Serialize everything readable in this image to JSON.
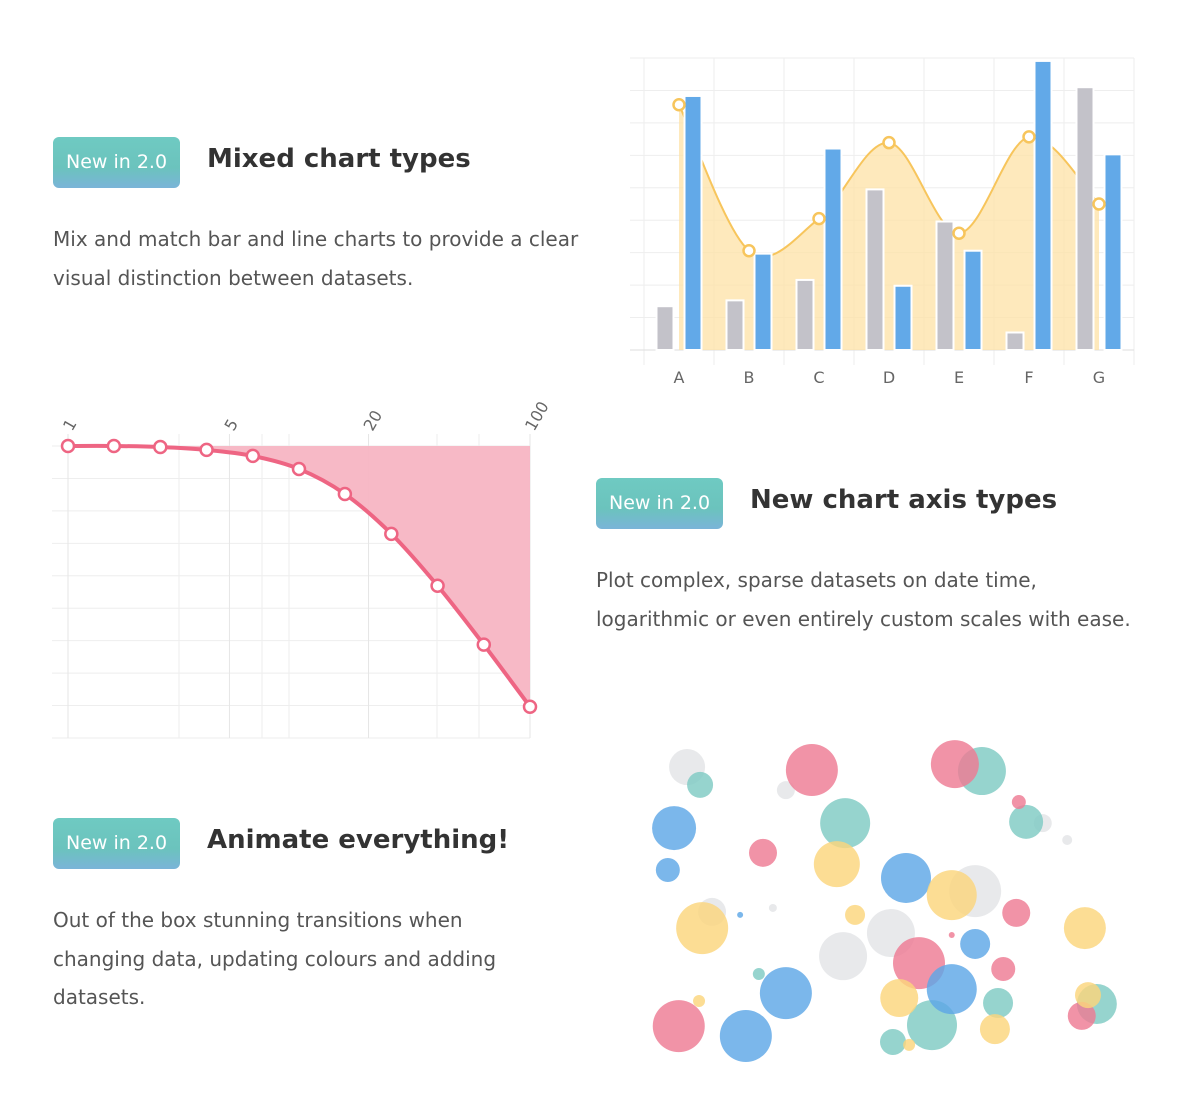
{
  "features": [
    {
      "badge": "New in 2.0",
      "title": "Mixed chart types",
      "text": "Mix and match bar and line charts to provide a clear visual distinction between datasets."
    },
    {
      "badge": "New in 2.0",
      "title": "New chart axis types",
      "text": "Plot complex, sparse datasets on date time, logarithmic or even entirely custom scales with ease."
    },
    {
      "badge": "New in 2.0",
      "title": "Animate everything!",
      "text": "Out of the box stunning transitions when changing data, updating colours and adding datasets."
    }
  ],
  "chart_data": [
    {
      "type": "bar",
      "categories": [
        "A",
        "B",
        "C",
        "D",
        "E",
        "F",
        "G"
      ],
      "ylim": [
        0,
        100
      ],
      "grid": true,
      "series": [
        {
          "type": "bar",
          "color": "#c3c2c9",
          "values": [
            15,
            17,
            24,
            55,
            44,
            6,
            90
          ]
        },
        {
          "type": "bar",
          "color": "#62a9e8",
          "values": [
            87,
            33,
            69,
            22,
            34,
            99,
            67
          ]
        },
        {
          "type": "line",
          "color": "#f7c55c",
          "fill": "#fde2a6",
          "values": [
            84,
            34,
            45,
            71,
            40,
            73,
            50
          ]
        }
      ]
    },
    {
      "type": "line",
      "xscale": "log",
      "xlim": [
        1,
        100
      ],
      "xticks": [
        1,
        5,
        20,
        100
      ],
      "ylim": [
        -112,
        0
      ],
      "grid": true,
      "color": "#ee6583",
      "fill": "#f7b5c3",
      "x": [
        1,
        1.58,
        2.51,
        3.98,
        6.31,
        10,
        15.8,
        25.1,
        39.8,
        63.1,
        100
      ],
      "values": [
        0,
        0,
        -0.4,
        -1.5,
        -3.8,
        -8.8,
        -18.4,
        -33.7,
        -53.6,
        -76.2,
        -100
      ]
    },
    {
      "type": "bubble",
      "xlim": [
        0,
        100
      ],
      "ylim": [
        0,
        100
      ],
      "series": [
        {
          "color": "#e3e4e7",
          "x": [
            12.9,
            31.9,
            81.3,
            86.0,
            17.7,
            29.4,
            68.3,
            52.1,
            42.9
          ],
          "y": [
            91.8,
            84.8,
            74.8,
            69.7,
            47.9,
            49.1,
            54.2,
            41.5,
            34.5
          ],
          "r": [
            18,
            9,
            9,
            5,
            14,
            4,
            26,
            24,
            24
          ]
        },
        {
          "color": "#7fcac3",
          "x": [
            15.4,
            69.6,
            43.3,
            78.1,
            26.7,
            72.7,
            60.0,
            52.5,
            91.7
          ],
          "y": [
            86.4,
            90.6,
            74.8,
            75.2,
            29.1,
            20.3,
            13.6,
            8.5,
            20.0
          ],
          "r": [
            13,
            24,
            25,
            17,
            6,
            15,
            25,
            13,
            20
          ]
        },
        {
          "color": "#ee7b94",
          "x": [
            36.9,
            64.4,
            27.5,
            76.7,
            76.2,
            57.5,
            63.8,
            73.7,
            11.3,
            88.8
          ],
          "y": [
            90.9,
            92.7,
            65.8,
            81.2,
            47.6,
            32.4,
            40.9,
            30.6,
            13.3,
            16.4
          ],
          "r": [
            26,
            24,
            14,
            7,
            14,
            26,
            3,
            12,
            26,
            14
          ]
        },
        {
          "color": "#5ea7e6",
          "x": [
            10.4,
            9.2,
            55.0,
            23.1,
            68.3,
            31.9,
            63.8,
            24.2
          ],
          "y": [
            73.3,
            60.6,
            58.2,
            47.0,
            38.2,
            23.3,
            24.5,
            10.3
          ],
          "r": [
            22,
            12,
            25,
            3,
            15,
            26,
            25,
            26
          ]
        },
        {
          "color": "#fbd57d",
          "x": [
            41.7,
            15.8,
            45.2,
            63.8,
            89.4,
            53.7,
            15.2,
            72.1,
            55.6,
            90.0
          ],
          "y": [
            62.4,
            43.0,
            47.0,
            53.0,
            43.0,
            21.8,
            20.9,
            12.4,
            7.6,
            22.7
          ],
          "r": [
            23,
            26,
            10,
            25,
            21,
            19,
            6,
            15,
            6,
            13
          ]
        }
      ]
    }
  ]
}
